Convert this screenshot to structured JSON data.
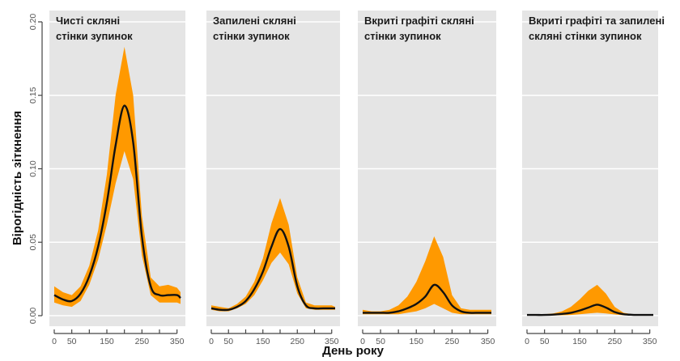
{
  "chart_data": {
    "type": "area",
    "title": "",
    "xlabel": "День року",
    "ylabel": "Вірогідність зіткнення",
    "xlim": [
      -5,
      365
    ],
    "ylim": [
      -0.007,
      0.205
    ],
    "x_ticks": [
      0,
      50,
      100,
      150,
      200,
      250,
      300,
      350
    ],
    "x_tick_labels": [
      "0",
      "50",
      "",
      "150",
      "",
      "250",
      "",
      "350"
    ],
    "y_ticks": [
      0.0,
      0.05,
      0.1,
      0.15,
      0.2
    ],
    "y_tick_labels": [
      "0.00",
      "0.05",
      "0.10",
      "0.15",
      "0.20"
    ],
    "grid": true,
    "colors": {
      "band": "#ff9900",
      "line": "#111111",
      "panel_bg": "#e5e5e5",
      "grid": "#ffffff"
    },
    "x": [
      0,
      25,
      50,
      75,
      100,
      125,
      150,
      175,
      200,
      225,
      250,
      275,
      300,
      325,
      350,
      360
    ],
    "panels": [
      {
        "title_lines": [
          "Чисті скляні",
          "стінки зупинок"
        ],
        "mean": [
          0.014,
          0.011,
          0.01,
          0.015,
          0.027,
          0.047,
          0.077,
          0.116,
          0.143,
          0.118,
          0.054,
          0.02,
          0.014,
          0.014,
          0.014,
          0.012
        ],
        "upper": [
          0.02,
          0.016,
          0.014,
          0.02,
          0.034,
          0.058,
          0.096,
          0.15,
          0.183,
          0.15,
          0.068,
          0.026,
          0.02,
          0.021,
          0.019,
          0.016
        ],
        "lower": [
          0.009,
          0.007,
          0.006,
          0.01,
          0.021,
          0.038,
          0.062,
          0.09,
          0.112,
          0.093,
          0.041,
          0.014,
          0.009,
          0.009,
          0.009,
          0.008
        ]
      },
      {
        "title_lines": [
          "Запилені скляні",
          "стінки зупинок"
        ],
        "mean": [
          0.005,
          0.004,
          0.004,
          0.006,
          0.01,
          0.018,
          0.03,
          0.047,
          0.059,
          0.047,
          0.02,
          0.007,
          0.005,
          0.005,
          0.005,
          0.005
        ],
        "upper": [
          0.007,
          0.006,
          0.005,
          0.008,
          0.013,
          0.023,
          0.039,
          0.063,
          0.08,
          0.062,
          0.026,
          0.009,
          0.007,
          0.007,
          0.007,
          0.006
        ],
        "lower": [
          0.004,
          0.003,
          0.003,
          0.005,
          0.008,
          0.014,
          0.024,
          0.036,
          0.043,
          0.035,
          0.015,
          0.005,
          0.004,
          0.004,
          0.004,
          0.004
        ]
      },
      {
        "title_lines": [
          "Вкриті графіті скляні",
          "стінки зупинок"
        ],
        "mean": [
          0.002,
          0.002,
          0.002,
          0.002,
          0.003,
          0.005,
          0.008,
          0.013,
          0.021,
          0.016,
          0.007,
          0.003,
          0.002,
          0.002,
          0.002,
          0.002
        ],
        "upper": [
          0.004,
          0.003,
          0.003,
          0.004,
          0.007,
          0.013,
          0.023,
          0.037,
          0.054,
          0.04,
          0.014,
          0.005,
          0.004,
          0.004,
          0.004,
          0.004
        ],
        "lower": [
          0.001,
          0.001,
          0.001,
          0.001,
          0.001,
          0.002,
          0.003,
          0.005,
          0.008,
          0.005,
          0.002,
          0.001,
          0.001,
          0.001,
          0.001,
          0.001
        ]
      },
      {
        "title_lines": [
          "Вкриті графіті та запилені",
          "скляні стінки зупинок"
        ],
        "mean": [
          0.0005,
          0.0005,
          0.0005,
          0.0007,
          0.0012,
          0.002,
          0.0035,
          0.0055,
          0.0075,
          0.0055,
          0.0025,
          0.001,
          0.0006,
          0.0005,
          0.0005,
          0.0005
        ],
        "upper": [
          0.001,
          0.001,
          0.001,
          0.0015,
          0.003,
          0.006,
          0.011,
          0.017,
          0.021,
          0.015,
          0.006,
          0.002,
          0.001,
          0.001,
          0.001,
          0.001
        ],
        "lower": [
          0.0002,
          0.0002,
          0.0002,
          0.0002,
          0.0003,
          0.0005,
          0.001,
          0.0015,
          0.002,
          0.0015,
          0.0008,
          0.0003,
          0.0002,
          0.0002,
          0.0002,
          0.0002
        ]
      }
    ]
  }
}
